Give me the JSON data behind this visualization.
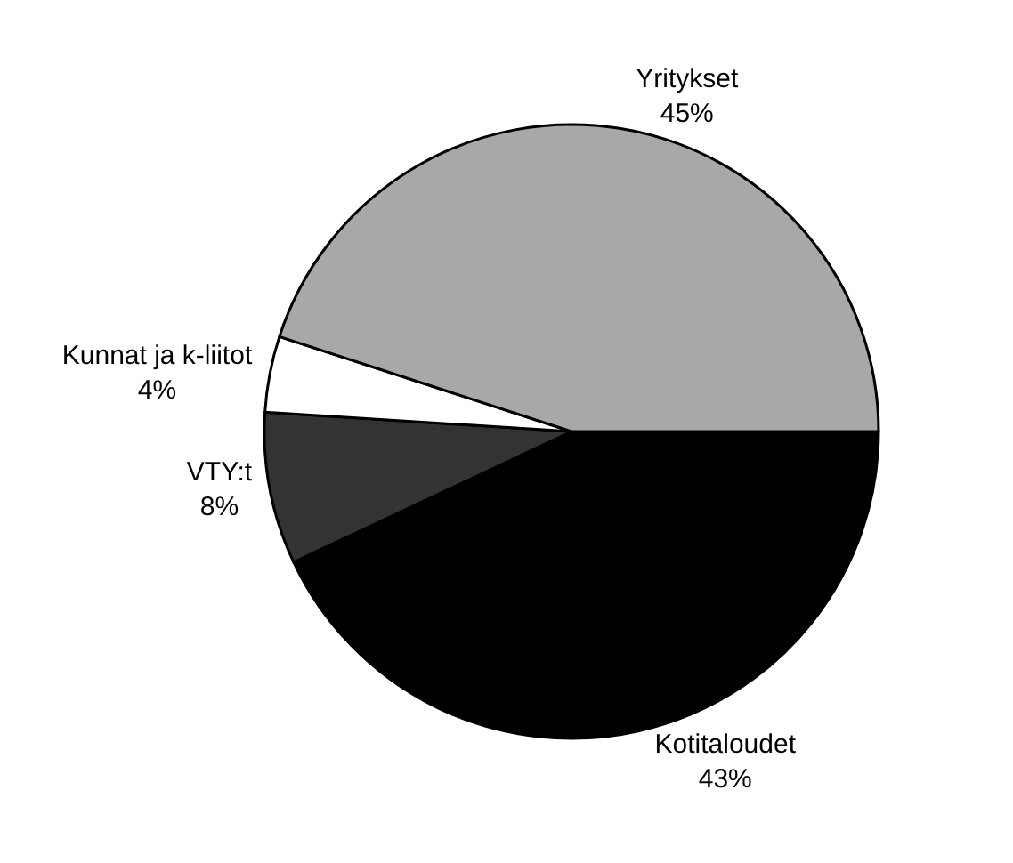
{
  "chart_data": {
    "type": "pie",
    "categories": [
      "Kotitaloudet",
      "VTY:t",
      "Kunnat ja k-liitot",
      "Yritykset"
    ],
    "values": [
      43,
      8,
      4,
      45
    ],
    "value_labels": [
      "43%",
      "8%",
      "4%",
      "45%"
    ],
    "colors": [
      "#000000",
      "#333333",
      "#ffffff",
      "#a8a8a8"
    ],
    "legend": false
  }
}
